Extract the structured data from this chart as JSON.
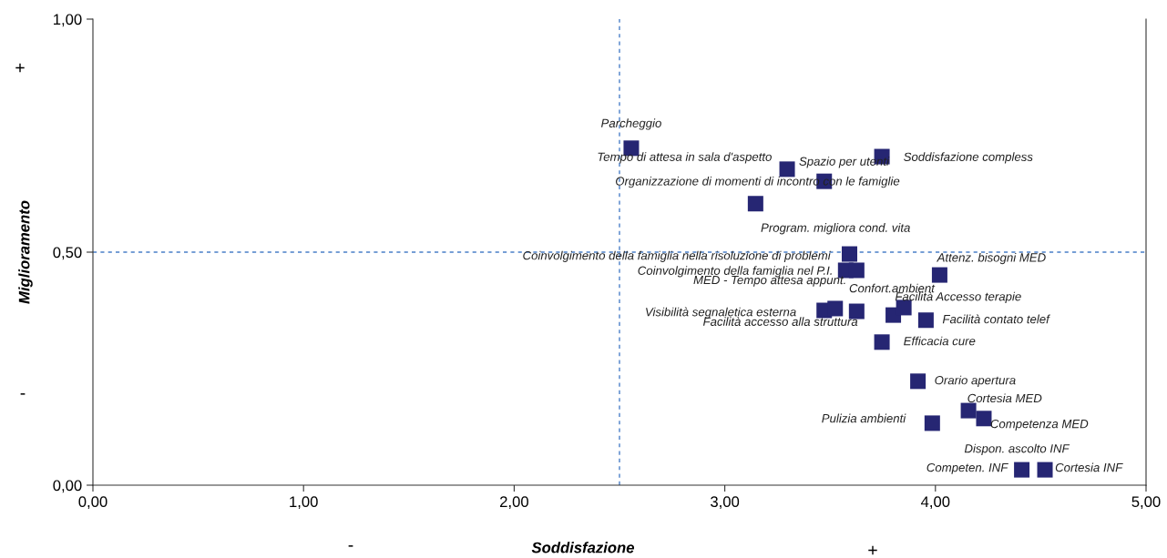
{
  "chart_data": {
    "type": "scatter",
    "xlabel": "Soddisfazione",
    "ylabel": "Miglioramento",
    "xlim": [
      0,
      5
    ],
    "ylim": [
      0,
      1
    ],
    "xticks": [
      {
        "value": 0,
        "label": "0,00"
      },
      {
        "value": 1,
        "label": "1,00"
      },
      {
        "value": 2,
        "label": "2,00"
      },
      {
        "value": 3,
        "label": "3,00"
      },
      {
        "value": 4,
        "label": "4,00"
      },
      {
        "value": 5,
        "label": "5,00"
      }
    ],
    "yticks": [
      {
        "value": 0,
        "label": "0,00"
      },
      {
        "value": 0.5,
        "label": "0,50"
      },
      {
        "value": 1,
        "label": "1,00"
      }
    ],
    "grid": false,
    "marker": "square",
    "series": [
      {
        "color": "#262673",
        "x": [
          2.556,
          3.296,
          3.472,
          3.746,
          3.146,
          3.592,
          3.574,
          3.626,
          4.02,
          3.626,
          3.472,
          3.8,
          3.85,
          3.955,
          3.746,
          3.917,
          4.157,
          4.23,
          3.985,
          4.41,
          4.52,
          3.524
        ],
        "values": [
          0.723,
          0.678,
          0.652,
          0.705,
          0.604,
          0.496,
          0.461,
          0.461,
          0.451,
          0.373,
          0.375,
          0.365,
          0.381,
          0.354,
          0.307,
          0.223,
          0.16,
          0.143,
          0.133,
          0.033,
          0.033,
          0.379
        ]
      }
    ],
    "ref_lines": [
      {
        "axis": "x",
        "value": 2.5,
        "color": "#4a7fc8",
        "line_style": "dashed"
      },
      {
        "axis": "y",
        "value": 0.5,
        "color": "#4a7fc8",
        "line_style": "dashed"
      }
    ],
    "annotations": [
      "+",
      "-",
      "-",
      "+",
      {
        "text": "Parcheggio",
        "x": 2.556,
        "y": 0.723
      },
      {
        "text": "Tempo di attesa in sala d'aspetto",
        "x": 3.296,
        "y": 0.678
      },
      {
        "text": "Spazio per utenti",
        "x": 3.472,
        "y": 0.652
      },
      {
        "text": "Soddisfazione compless",
        "x": 3.746,
        "y": 0.705
      },
      {
        "text": "Organizzazione di momenti di incontro con le famiglie",
        "x": 3.146,
        "y": 0.604
      },
      {
        "text": "Program. migliora cond. vita",
        "x": 3.592,
        "y": 0.496
      },
      {
        "text": "Coinvolgimento della famiglia nella risoluzione di problemi",
        "x": 3.592,
        "y": 0.496
      },
      {
        "text": "Coinvolgimento della famiglia nel P.I.",
        "x": 3.574,
        "y": 0.461
      },
      {
        "text": "Confort.ambient",
        "x": 3.626,
        "y": 0.461
      },
      {
        "text": "Attenz. bisogni MED",
        "x": 4.02,
        "y": 0.451
      },
      {
        "text": "MED - Tempo attesa appunt.",
        "x": 3.626,
        "y": 0.373
      },
      {
        "text": "Visibilità segnaletica esterna",
        "x": 3.472,
        "y": 0.375
      },
      {
        "text": "Facilità accesso alla struttura",
        "x": 3.8,
        "y": 0.365
      },
      {
        "text": "Facilità Accesso terapie",
        "x": 3.85,
        "y": 0.381
      },
      {
        "text": "Facilità contato telef",
        "x": 3.955,
        "y": 0.354
      },
      {
        "text": "Efficacia cure",
        "x": 3.746,
        "y": 0.307
      },
      {
        "text": "Orario apertura",
        "x": 3.917,
        "y": 0.223
      },
      {
        "text": "Cortesia MED",
        "x": 4.157,
        "y": 0.16
      },
      {
        "text": "Competenza MED",
        "x": 4.23,
        "y": 0.143
      },
      {
        "text": "Pulizia ambienti",
        "x": 3.985,
        "y": 0.133
      },
      {
        "text": "Dispon. ascolto INF",
        "x": 4.41,
        "y": 0.033
      },
      {
        "text": "Competen. INF",
        "x": 4.41,
        "y": 0.033
      },
      {
        "text": "Cortesia INF",
        "x": 4.52,
        "y": 0.033
      }
    ]
  }
}
